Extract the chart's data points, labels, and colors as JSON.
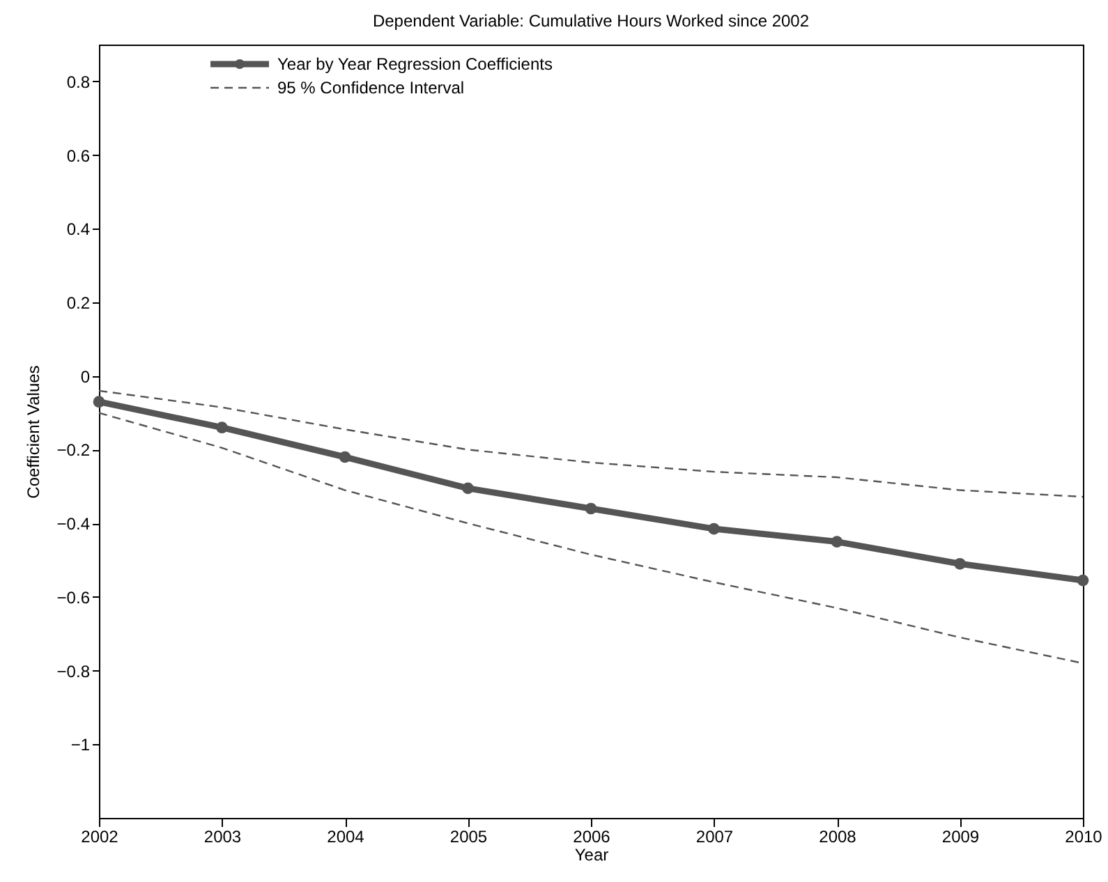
{
  "chart_data": {
    "type": "line",
    "title": "Dependent Variable: Cumulative Hours Worked since 2002",
    "xlabel": "Year",
    "ylabel": "Coefficient Values",
    "x": [
      2002,
      2003,
      2004,
      2005,
      2006,
      2007,
      2008,
      2009,
      2010
    ],
    "xlim": [
      2002,
      2010
    ],
    "xticks": [
      2002,
      2003,
      2004,
      2005,
      2006,
      2007,
      2008,
      2009,
      2010
    ],
    "ylim": [
      -1.2,
      0.9
    ],
    "yticks": [
      -1,
      -0.8,
      -0.6,
      -0.4,
      -0.2,
      0,
      0.2,
      0.4,
      0.6,
      0.8
    ],
    "legend": "top left",
    "series": [
      {
        "name": "Year by Year Regression Coefficients",
        "color": "#555555",
        "marker": "circle",
        "line_style": "solid",
        "values": [
          -0.07,
          -0.14,
          -0.22,
          -0.305,
          -0.36,
          -0.415,
          -0.45,
          -0.51,
          -0.555
        ]
      },
      {
        "name": "95 % Confidence Interval",
        "color": "#555555",
        "marker": "none",
        "line_style": "dashed",
        "values": [
          -0.04,
          -0.085,
          -0.145,
          -0.2,
          -0.235,
          -0.26,
          -0.275,
          -0.31,
          -0.328
        ]
      },
      {
        "color": "#555555",
        "marker": "none",
        "line_style": "dashed",
        "values": [
          -0.1,
          -0.195,
          -0.31,
          -0.4,
          -0.485,
          -0.56,
          -0.63,
          -0.71,
          -0.78
        ]
      }
    ]
  }
}
